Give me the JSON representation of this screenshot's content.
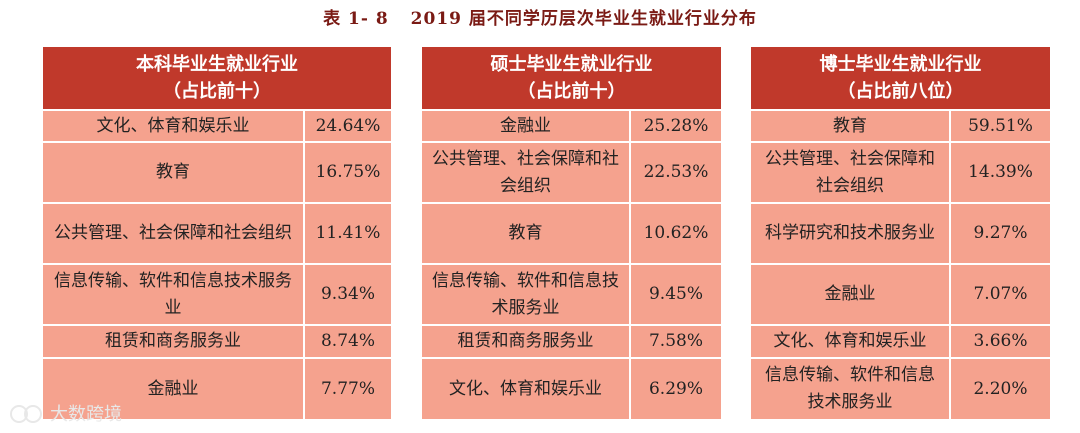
{
  "caption": {
    "number": "表 1- 8",
    "title": "2019 届不同学历层次毕业生就业行业分布"
  },
  "tables": [
    {
      "header_line1": "本科毕业生就业行业",
      "header_line2": "（占比前十）",
      "rows": [
        {
          "industry": "文化、体育和娱乐业",
          "share": "24.64%"
        },
        {
          "industry": "教育",
          "share": "16.75%"
        },
        {
          "industry": "公共管理、社会保障和社会组织",
          "share": "11.41%"
        },
        {
          "industry": "信息传输、软件和信息技术服务业",
          "share": "9.34%"
        },
        {
          "industry": "租赁和商务服务业",
          "share": "8.74%"
        },
        {
          "industry": "金融业",
          "share": "7.77%"
        }
      ]
    },
    {
      "header_line1": "硕士毕业生就业行业",
      "header_line2": "（占比前十）",
      "rows": [
        {
          "industry": "金融业",
          "share": "25.28%"
        },
        {
          "industry": "公共管理、社会保障和社会组织",
          "share": "22.53%"
        },
        {
          "industry": "教育",
          "share": "10.62%"
        },
        {
          "industry": "信息传输、软件和信息技术服务业",
          "share": "9.45%"
        },
        {
          "industry": "租赁和商务服务业",
          "share": "7.58%"
        },
        {
          "industry": "文化、体育和娱乐业",
          "share": "6.29%"
        }
      ]
    },
    {
      "header_line1": "博士毕业生就业行业",
      "header_line2": "（占比前八位）",
      "rows": [
        {
          "industry": "教育",
          "share": "59.51%"
        },
        {
          "industry": "公共管理、社会保障和社会组织",
          "share": "14.39%"
        },
        {
          "industry": "科学研究和技术服务业",
          "share": "9.27%"
        },
        {
          "industry": "金融业",
          "share": "7.07%"
        },
        {
          "industry": "文化、体育和娱乐业",
          "share": "3.66%"
        },
        {
          "industry": "信息传输、软件和信息技术服务业",
          "share": "2.20%"
        }
      ]
    }
  ],
  "watermark": {
    "text": "大数跨境",
    "icon": "chat-bubbles-icon"
  },
  "colors": {
    "header": "#c0392b",
    "cell": "#f5a28e",
    "caption": "#7a1a14"
  }
}
